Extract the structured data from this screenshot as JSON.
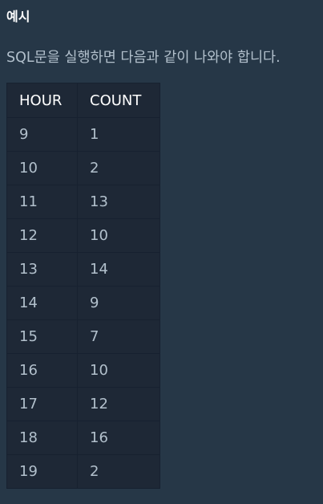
{
  "section": {
    "heading": "예시",
    "description": "SQL문을 실행하면 다음과 같이 나와야 합니다."
  },
  "table": {
    "headers": [
      "HOUR",
      "COUNT"
    ],
    "rows": [
      [
        "9",
        "1"
      ],
      [
        "10",
        "2"
      ],
      [
        "11",
        "13"
      ],
      [
        "12",
        "10"
      ],
      [
        "13",
        "14"
      ],
      [
        "14",
        "9"
      ],
      [
        "15",
        "7"
      ],
      [
        "16",
        "10"
      ],
      [
        "17",
        "12"
      ],
      [
        "18",
        "16"
      ],
      [
        "19",
        "2"
      ]
    ]
  }
}
